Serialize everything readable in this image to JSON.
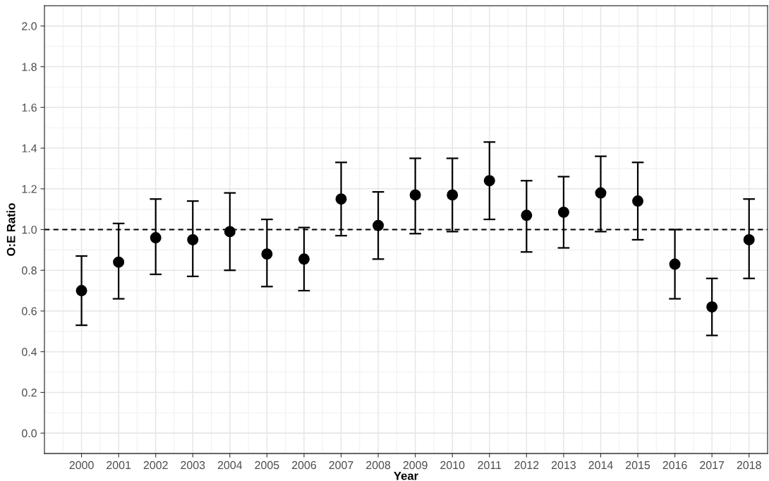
{
  "chart_data": {
    "type": "scatter",
    "xlabel": "Year",
    "ylabel": "O:E Ratio",
    "categories": [
      "2000",
      "2001",
      "2002",
      "2003",
      "2004",
      "2005",
      "2006",
      "2007",
      "2008",
      "2009",
      "2010",
      "2011",
      "2012",
      "2013",
      "2014",
      "2015",
      "2016",
      "2017",
      "2018"
    ],
    "series": [
      {
        "color": "#000000",
        "values": [
          0.7,
          0.84,
          0.96,
          0.95,
          0.99,
          0.88,
          0.855,
          1.15,
          1.02,
          1.17,
          1.17,
          1.24,
          1.07,
          1.085,
          1.18,
          1.14,
          0.83,
          0.62,
          0.95
        ],
        "errors": [
          [
            0.53,
            0.87
          ],
          [
            0.66,
            1.03
          ],
          [
            0.78,
            1.15
          ],
          [
            0.77,
            1.14
          ],
          [
            0.8,
            1.18
          ],
          [
            0.72,
            1.05
          ],
          [
            0.7,
            1.01
          ],
          [
            0.97,
            1.33
          ],
          [
            0.855,
            1.185
          ],
          [
            0.98,
            1.35
          ],
          [
            0.99,
            1.35
          ],
          [
            1.05,
            1.43
          ],
          [
            0.89,
            1.24
          ],
          [
            0.91,
            1.26
          ],
          [
            0.99,
            1.36
          ],
          [
            0.95,
            1.33
          ],
          [
            0.66,
            1.0
          ],
          [
            0.48,
            0.76
          ],
          [
            0.76,
            1.15
          ]
        ]
      }
    ],
    "ylim": [
      -0.1,
      2.1
    ],
    "yticks": [
      {
        "value": 0,
        "label": "0.0"
      },
      {
        "value": 0.2,
        "label": "0.2"
      },
      {
        "value": 0.4,
        "label": "0.4"
      },
      {
        "value": 0.6,
        "label": "0.6"
      },
      {
        "value": 0.8,
        "label": "0.8"
      },
      {
        "value": 1,
        "label": "1.0"
      },
      {
        "value": 1.2,
        "label": "1.2"
      },
      {
        "value": 1.4,
        "label": "1.4"
      },
      {
        "value": 1.6,
        "label": "1.6"
      },
      {
        "value": 1.8,
        "label": "1.8"
      },
      {
        "value": 2,
        "label": "2.0"
      }
    ],
    "ref_lines": [
      {
        "axis": "y",
        "value": 1,
        "color": "#000000",
        "line_style": "dashed"
      }
    ],
    "grid": true,
    "marker": "circle"
  }
}
